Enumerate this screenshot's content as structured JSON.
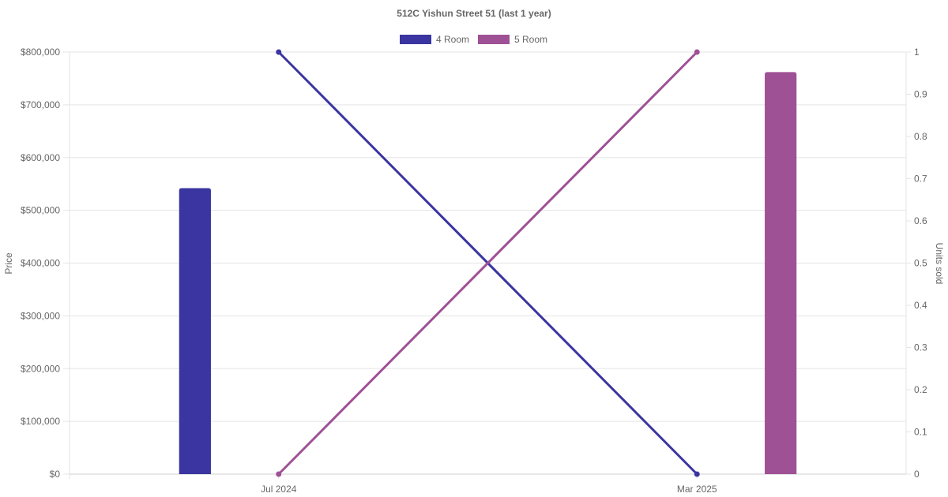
{
  "chart_data": {
    "type": "bar",
    "title": "512C Yishun Street 51 (last 1 year)",
    "categories": [
      "Jul 2024",
      "Mar 2025"
    ],
    "series": [
      {
        "name": "4 Room",
        "kind": "bar",
        "axis": "price",
        "color": "#3a35a0",
        "values": [
          542000,
          null
        ]
      },
      {
        "name": "5 Room",
        "kind": "bar",
        "axis": "price",
        "color": "#9f5195",
        "values": [
          null,
          762000
        ]
      },
      {
        "name": "4 Room",
        "kind": "line",
        "axis": "units",
        "color": "#3a35a0",
        "values": [
          1,
          0
        ]
      },
      {
        "name": "5 Room",
        "kind": "line",
        "axis": "units",
        "color": "#9f5195",
        "values": [
          0,
          1
        ]
      }
    ],
    "legend": {
      "placement": "top",
      "entries": [
        {
          "label": "4 Room",
          "color": "#3a35a0"
        },
        {
          "label": "5 Room",
          "color": "#9f5195"
        }
      ]
    },
    "y_left": {
      "label": "Price",
      "ylim": [
        0,
        800000
      ],
      "ticks": [
        "$0",
        "$100,000",
        "$200,000",
        "$300,000",
        "$400,000",
        "$500,000",
        "$600,000",
        "$700,000",
        "$800,000"
      ]
    },
    "y_right": {
      "label": "Units sold",
      "ylim": [
        0,
        1
      ],
      "ticks": [
        "0",
        "0.1",
        "0.2",
        "0.3",
        "0.4",
        "0.5",
        "0.6",
        "0.7",
        "0.8",
        "0.9",
        "1"
      ]
    },
    "grid": true
  }
}
